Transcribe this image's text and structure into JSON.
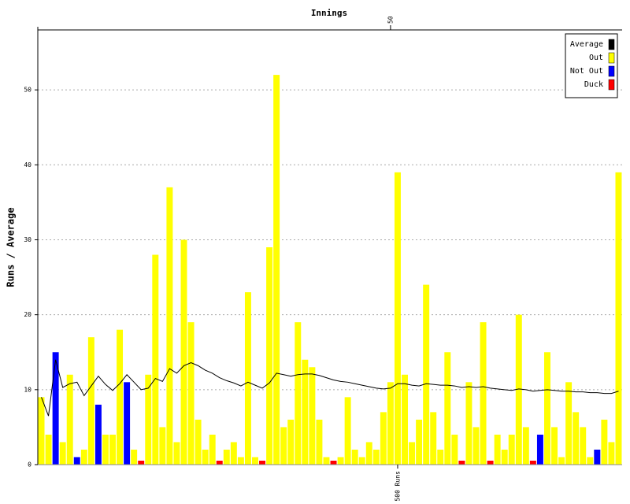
{
  "chart_data": {
    "type": "bar",
    "title": "Innings",
    "y_label": "Runs / Average",
    "x": [
      1,
      2,
      3,
      4,
      5,
      6,
      7,
      8,
      9,
      10,
      11,
      12,
      13,
      14,
      15,
      16,
      17,
      18,
      19,
      20,
      21,
      22,
      23,
      24,
      25,
      26,
      27,
      28,
      29,
      30,
      31,
      32,
      33,
      34,
      35,
      36,
      37,
      38,
      39,
      40,
      41,
      42,
      43,
      44,
      45,
      46,
      47,
      48,
      49,
      50,
      51,
      52,
      53,
      54,
      55,
      56,
      57,
      58,
      59,
      60,
      61,
      62,
      63,
      64,
      65,
      66,
      67,
      68,
      69,
      70,
      71,
      72,
      73,
      74,
      75,
      76,
      77,
      78,
      79,
      80,
      81,
      82
    ],
    "xlim": [
      0.5,
      82.5
    ],
    "xticks": [
      50
    ],
    "ylim": [
      0,
      58
    ],
    "yticks": [
      0,
      10,
      20,
      30,
      40,
      50
    ],
    "grid": true,
    "legend": "upper right",
    "series": [
      {
        "name": "Average",
        "color": "#000000",
        "type": "line",
        "values": [
          9,
          6.5,
          14,
          10.3,
          10.8,
          11,
          9.2,
          10.5,
          11.8,
          10.7,
          9.9,
          10.8,
          12,
          11,
          10,
          10.2,
          11.5,
          11.1,
          12.8,
          12.2,
          13.2,
          13.6,
          13.2,
          12.6,
          12.2,
          11.6,
          11.2,
          10.9,
          10.5,
          11,
          10.6,
          10.2,
          10.9,
          12.2,
          12,
          11.8,
          12,
          12.1,
          12.1,
          11.9,
          11.6,
          11.3,
          11.1,
          11,
          10.8,
          10.6,
          10.4,
          10.2,
          10.1,
          10.2,
          10.8,
          10.8,
          10.6,
          10.5,
          10.8,
          10.7,
          10.6,
          10.6,
          10.5,
          10.3,
          10.4,
          10.3,
          10.4,
          10.2,
          10.1,
          10,
          9.9,
          10.1,
          10,
          9.8,
          9.9,
          10,
          9.9,
          9.8,
          9.8,
          9.7,
          9.7,
          9.6,
          9.6,
          9.5,
          9.5,
          9.8
        ]
      },
      {
        "name": "Out",
        "color": "#ffff00",
        "type": "bar",
        "values": [
          9,
          4,
          null,
          3,
          12,
          null,
          2,
          17,
          null,
          4,
          4,
          18,
          null,
          2,
          null,
          12,
          28,
          5,
          37,
          3,
          30,
          19,
          6,
          2,
          4,
          null,
          2,
          3,
          1,
          23,
          1,
          null,
          29,
          52,
          5,
          6,
          19,
          14,
          13,
          6,
          1,
          null,
          1,
          9,
          2,
          1,
          3,
          2,
          7,
          11,
          39,
          12,
          3,
          6,
          24,
          7,
          2,
          15,
          4,
          null,
          11,
          5,
          19,
          null,
          4,
          2,
          4,
          20,
          5,
          null,
          null,
          15,
          5,
          1,
          11,
          7,
          5,
          1,
          2,
          6,
          3,
          39
        ]
      },
      {
        "name": "Not Out",
        "color": "#0000ff",
        "type": "bar",
        "values": [
          null,
          null,
          15,
          null,
          null,
          1,
          null,
          null,
          8,
          null,
          null,
          null,
          11,
          null,
          null,
          null,
          null,
          null,
          null,
          null,
          null,
          null,
          null,
          null,
          null,
          null,
          null,
          null,
          null,
          null,
          null,
          null,
          null,
          null,
          null,
          null,
          null,
          null,
          null,
          null,
          null,
          null,
          null,
          null,
          null,
          null,
          null,
          null,
          null,
          null,
          null,
          null,
          null,
          null,
          null,
          null,
          null,
          null,
          null,
          null,
          null,
          null,
          null,
          null,
          null,
          null,
          null,
          null,
          null,
          null,
          4,
          null,
          null,
          null,
          null,
          null,
          null,
          null,
          2,
          null,
          null,
          null
        ]
      },
      {
        "name": "Duck",
        "color": "#ff0000",
        "type": "duck",
        "values": [
          null,
          null,
          null,
          null,
          null,
          null,
          null,
          null,
          null,
          null,
          null,
          null,
          null,
          null,
          0,
          null,
          null,
          null,
          null,
          null,
          null,
          null,
          null,
          null,
          null,
          0,
          null,
          null,
          null,
          null,
          null,
          0,
          null,
          null,
          null,
          null,
          null,
          null,
          null,
          null,
          null,
          0,
          null,
          null,
          null,
          null,
          null,
          null,
          null,
          null,
          null,
          null,
          null,
          null,
          null,
          null,
          null,
          null,
          null,
          0,
          null,
          null,
          null,
          0,
          null,
          null,
          null,
          null,
          null,
          0,
          null,
          null,
          null,
          null,
          null,
          null,
          null,
          null,
          null,
          null,
          null,
          null
        ]
      }
    ],
    "annotations": [
      {
        "text": "500 Runs",
        "x": 51
      }
    ]
  }
}
